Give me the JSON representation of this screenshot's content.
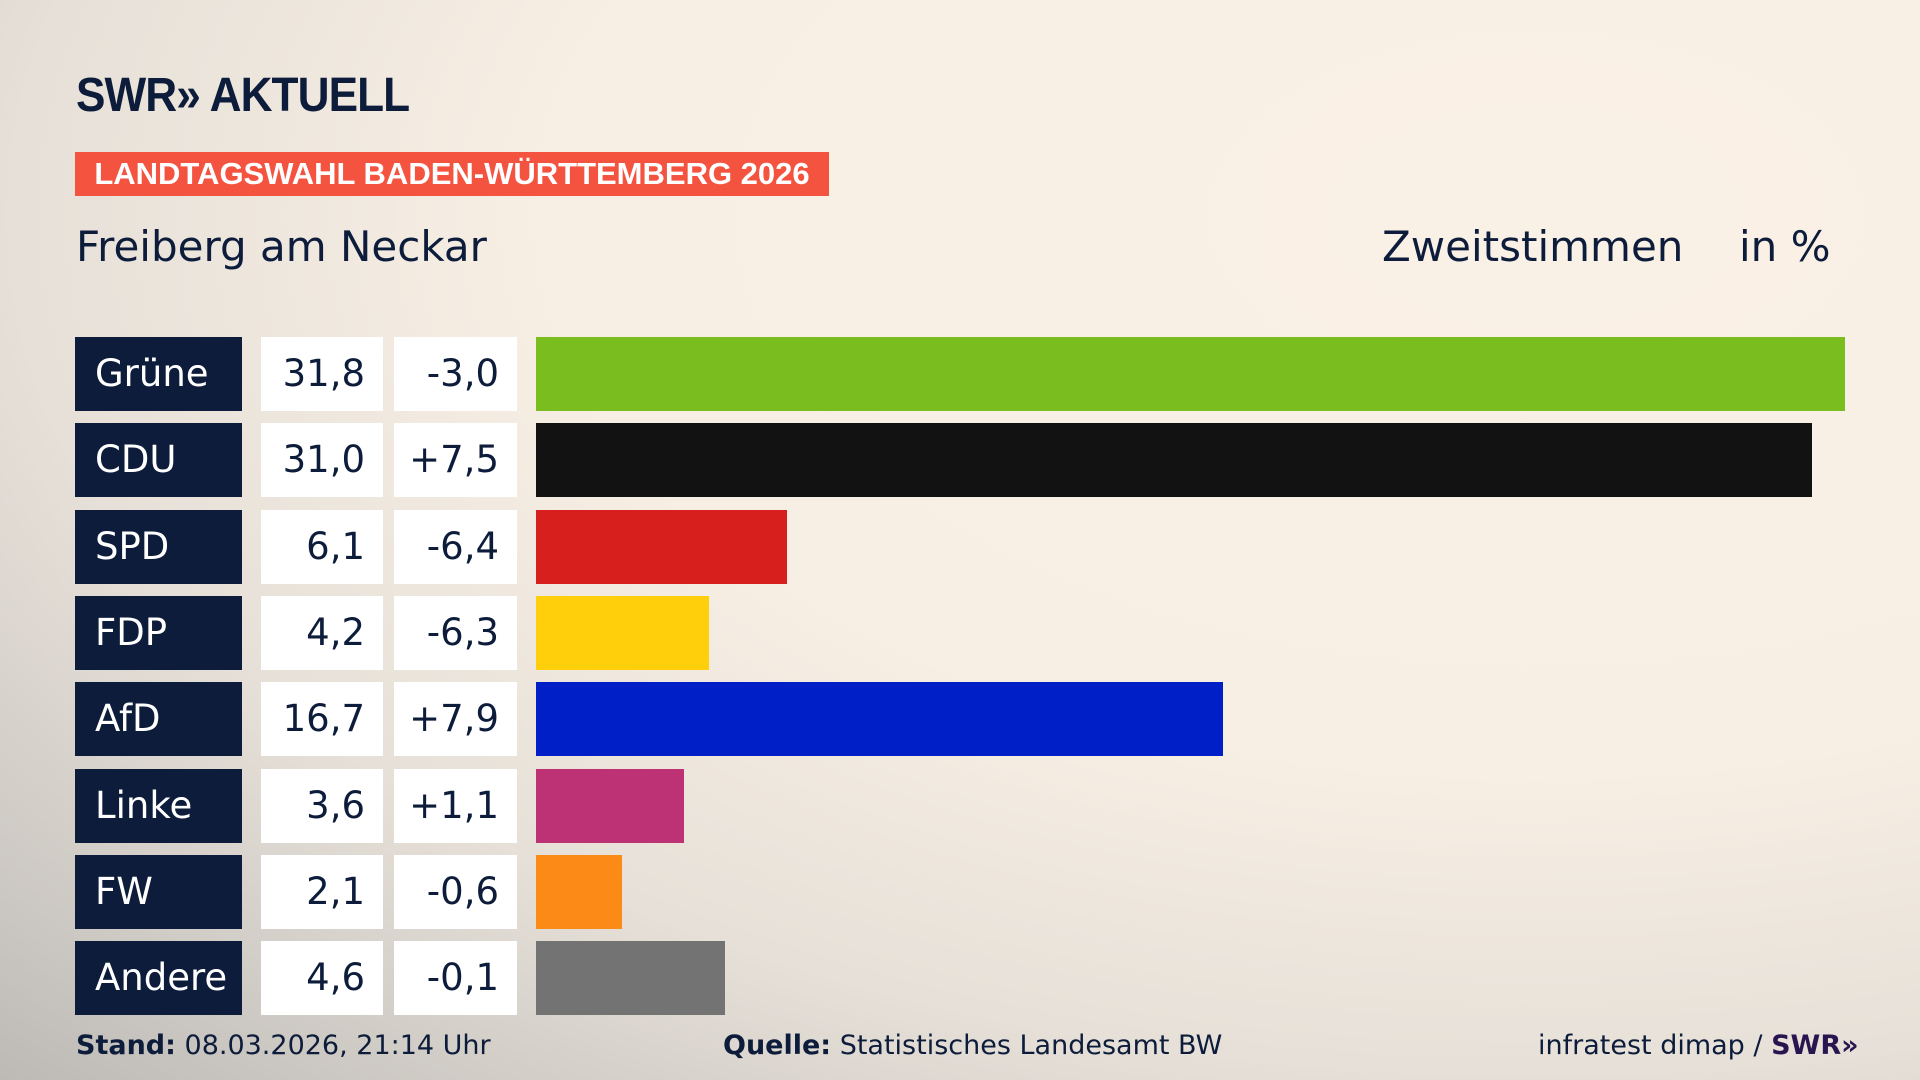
{
  "header": {
    "logo": "SWR» AKTUELL",
    "banner": "LANDTAGSWAHL BADEN-WÜRTTEMBERG 2026",
    "place": "Freiberg am Neckar",
    "votes_label": "Zweitstimmen",
    "unit": "in %"
  },
  "chart_data": {
    "type": "bar",
    "orientation": "horizontal",
    "title": "Freiberg am Neckar",
    "xlabel": "Zweitstimmen",
    "unit": "in %",
    "categories": [
      "Grüne",
      "CDU",
      "SPD",
      "FDP",
      "AfD",
      "Linke",
      "FW",
      "Andere"
    ],
    "values": [
      31.8,
      31.0,
      6.1,
      4.2,
      16.7,
      3.6,
      2.1,
      4.6
    ],
    "value_labels": [
      "31,8",
      "31,0",
      "6,1",
      "4,2",
      "16,7",
      "3,6",
      "2,1",
      "4,6"
    ],
    "changes": [
      "-3,0",
      "+7,5",
      "-6,4",
      "-6,3",
      "+7,9",
      "+1,1",
      "-0,6",
      "-0,1"
    ],
    "colors": [
      "#7abd1f",
      "#121212",
      "#d71f1d",
      "#fecf0a",
      "#001fc7",
      "#bd3175",
      "#fc8a16",
      "#737373"
    ],
    "grid": false
  },
  "footer": {
    "stand_label": "Stand:",
    "stand": "08.03.2026, 21:14 Uhr",
    "quelle_label": "Quelle:",
    "quelle": "Statistisches Landesamt BW",
    "credit": "infratest dimap /",
    "credit_logo": "SWR»"
  }
}
